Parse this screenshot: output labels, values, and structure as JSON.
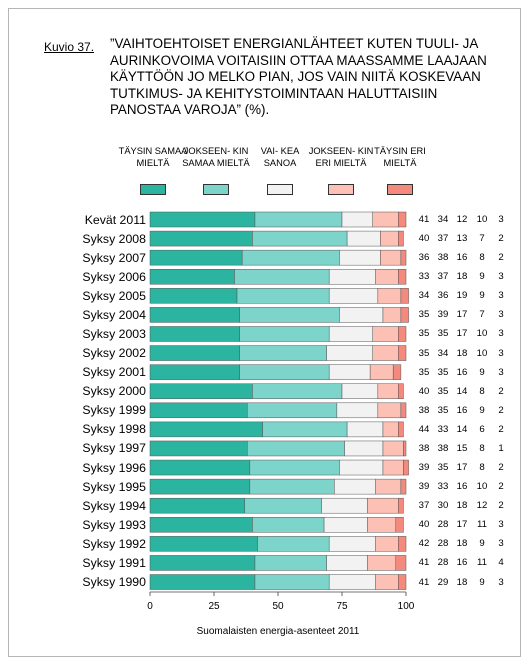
{
  "figure": {
    "label": "Kuvio 37.",
    "title": "”VAIHTOEHTOISET ENERGIANLÄHTEET KUTEN TUULI- JA AURINKOVOIMA VOITAISIIN OTTAA MAASSAMME LAAJAAN KÄYTTÖÖN JO MELKO PIAN, JOS VAIN NIITÄ KOSKEVAAN TUTKIMUS- JA KEHITYSTOIMINTAAN HALUTTAISIIN PANOSTAA VAROJA” (%).",
    "source": "Suomalaisten energia-asenteet 2011"
  },
  "legend": [
    {
      "label": "TÄYSIN SAMAA MIELTÄ",
      "color": "#2bb5a0"
    },
    {
      "label": "JOKSEEN- KIN SAMAA MIELTÄ",
      "color": "#7dd4cb"
    },
    {
      "label": "VAI- KEA SANOA",
      "color": "#f2f2f2"
    },
    {
      "label": "JOKSEEN- KIN ERI MIELTÄ",
      "color": "#fcc0b4"
    },
    {
      "label": "TÄYSIN ERI MIELTÄ",
      "color": "#f4897e"
    }
  ],
  "chart_data": {
    "type": "bar",
    "orientation": "horizontal",
    "stacked": true,
    "xlim": [
      0,
      100
    ],
    "xticks": [
      "0",
      "25",
      "50",
      "75",
      "100"
    ],
    "grid": false,
    "legend_position": "top",
    "categories": [
      "Kevät 2011",
      "Syksy 2008",
      "Syksy 2007",
      "Syksy 2006",
      "Syksy 2005",
      "Syksy 2004",
      "Syksy 2003",
      "Syksy 2002",
      "Syksy 2001",
      "Syksy 2000",
      "Syksy 1999",
      "Syksy 1998",
      "Syksy 1997",
      "Syksy 1996",
      "Syksy 1995",
      "Syksy 1994",
      "Syksy 1993",
      "Syksy 1992",
      "Syksy 1991",
      "Syksy 1990"
    ],
    "series": [
      {
        "name": "TÄYSIN SAMAA MIELTÄ",
        "values": [
          41,
          40,
          36,
          33,
          34,
          35,
          35,
          35,
          35,
          40,
          38,
          44,
          38,
          39,
          39,
          37,
          40,
          42,
          41,
          41
        ]
      },
      {
        "name": "JOKSEENKIN SAMAA MIELTÄ",
        "values": [
          34,
          37,
          38,
          37,
          36,
          39,
          35,
          34,
          35,
          35,
          35,
          33,
          38,
          35,
          33,
          30,
          28,
          28,
          28,
          29
        ]
      },
      {
        "name": "VAIKEA SANOA",
        "values": [
          12,
          13,
          16,
          18,
          19,
          17,
          17,
          18,
          16,
          14,
          16,
          14,
          15,
          17,
          16,
          18,
          17,
          18,
          16,
          18
        ]
      },
      {
        "name": "JOKSEENKIN ERI MIELTÄ",
        "values": [
          10,
          7,
          8,
          9,
          9,
          7,
          10,
          10,
          9,
          8,
          9,
          6,
          8,
          8,
          10,
          12,
          11,
          9,
          11,
          9
        ]
      },
      {
        "name": "TÄYSIN ERI MIELTÄ",
        "values": [
          3,
          2,
          2,
          3,
          3,
          3,
          3,
          3,
          3,
          2,
          2,
          2,
          1,
          2,
          2,
          2,
          3,
          3,
          4,
          3
        ]
      }
    ]
  }
}
